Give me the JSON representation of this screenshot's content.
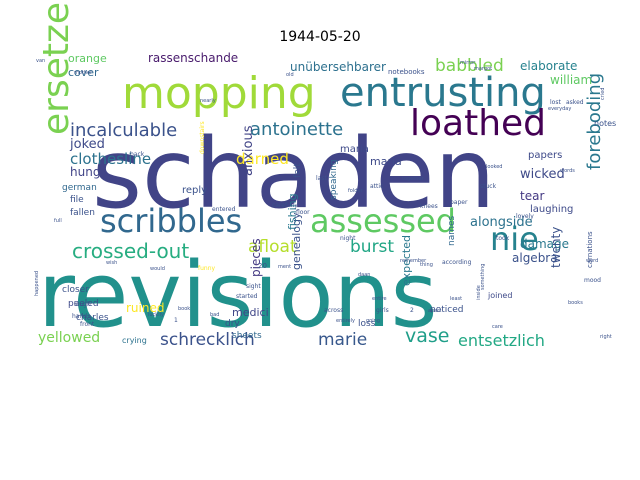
{
  "chart_data": {
    "type": "wordcloud",
    "title": "1944-05-20",
    "words": [
      {
        "text": "schaden",
        "weight": 100,
        "color": "#414487"
      },
      {
        "text": "revisions",
        "weight": 98,
        "color": "#21918c"
      },
      {
        "text": "mopping",
        "weight": 60,
        "color": "#a0da39"
      },
      {
        "text": "entrusting",
        "weight": 45,
        "color": "#2a788e"
      },
      {
        "text": "loathed",
        "weight": 42,
        "color": "#440154"
      },
      {
        "text": "ersetzen",
        "weight": 42,
        "color": "#7ad151"
      },
      {
        "text": "scribbles",
        "weight": 36,
        "color": "#31688e"
      },
      {
        "text": "assessed",
        "weight": 34,
        "color": "#5ec962"
      },
      {
        "text": "nie",
        "weight": 34,
        "color": "#26828e"
      },
      {
        "text": "incalculable",
        "weight": 22,
        "color": "#3b528b"
      },
      {
        "text": "antoinette",
        "weight": 22,
        "color": "#2c728e"
      },
      {
        "text": "crossed-out",
        "weight": 22,
        "color": "#27ad81"
      },
      {
        "text": "afloat",
        "weight": 20,
        "color": "#b5de2b"
      },
      {
        "text": "burst",
        "weight": 20,
        "color": "#21a685"
      },
      {
        "text": "babbled",
        "weight": 18,
        "color": "#7ad151"
      },
      {
        "text": "vase",
        "weight": 18,
        "color": "#1f9e89"
      },
      {
        "text": "foreboding",
        "weight": 18,
        "color": "#2a788e"
      },
      {
        "text": "schrecklich",
        "weight": 16,
        "color": "#3b528b"
      },
      {
        "text": "marie",
        "weight": 16,
        "color": "#38588c"
      },
      {
        "text": "entsetzlich",
        "weight": 16,
        "color": "#22a884"
      },
      {
        "text": "clothesline",
        "weight": 14,
        "color": "#2c728e"
      },
      {
        "text": "darned",
        "weight": 14,
        "color": "#fde725"
      },
      {
        "text": "elaborate",
        "weight": 13,
        "color": "#26828e"
      },
      {
        "text": "william",
        "weight": 12,
        "color": "#5ec962"
      },
      {
        "text": "joked",
        "weight": 12,
        "color": "#3e4a89"
      },
      {
        "text": "unübersehbarer",
        "weight": 12,
        "color": "#2d708e"
      },
      {
        "text": "rassenschande",
        "weight": 11,
        "color": "#481a6c"
      },
      {
        "text": "orange",
        "weight": 11,
        "color": "#5ec962"
      },
      {
        "text": "cover",
        "weight": 11,
        "color": "#31688e"
      },
      {
        "text": "yellowed",
        "weight": 13,
        "color": "#7ad151"
      },
      {
        "text": "anxious",
        "weight": 12,
        "color": "#414487"
      },
      {
        "text": "alongside",
        "weight": 12,
        "color": "#2c728e"
      },
      {
        "text": "wicked",
        "weight": 12,
        "color": "#3e4a89"
      },
      {
        "text": "damage",
        "weight": 11,
        "color": "#2a788e"
      },
      {
        "text": "tear",
        "weight": 11,
        "color": "#443983"
      },
      {
        "text": "algebra",
        "weight": 11,
        "color": "#3b528b"
      },
      {
        "text": "twenty",
        "weight": 11,
        "color": "#3b528b"
      },
      {
        "text": "ruined",
        "weight": 11,
        "color": "#fde725"
      },
      {
        "text": "genealogy",
        "weight": 10,
        "color": "#3b528b"
      },
      {
        "text": "fishing",
        "weight": 10,
        "color": "#2a788e"
      },
      {
        "text": "pieces",
        "weight": 11,
        "color": "#443983"
      },
      {
        "text": "hung",
        "weight": 11,
        "color": "#414487"
      },
      {
        "text": "maria",
        "weight": 10,
        "color": "#3e4a89"
      },
      {
        "text": "medici",
        "weight": 10,
        "color": "#404688"
      },
      {
        "text": "expected",
        "weight": 10,
        "color": "#2a788e"
      },
      {
        "text": "laughing",
        "weight": 9,
        "color": "#3e4a89"
      },
      {
        "text": "papers",
        "weight": 9,
        "color": "#3e4a89"
      },
      {
        "text": "maria",
        "weight": 10,
        "color": "#3e4a89"
      },
      {
        "text": "reply",
        "weight": 9,
        "color": "#3b528b"
      },
      {
        "text": "felt",
        "weight": 8,
        "color": "#3b528b"
      },
      {
        "text": "speaking",
        "weight": 8,
        "color": "#31688e"
      },
      {
        "text": "names",
        "weight": 8,
        "color": "#31688e"
      },
      {
        "text": "notes",
        "weight": 8,
        "color": "#3b528b"
      },
      {
        "text": "german",
        "weight": 8,
        "color": "#31688e"
      },
      {
        "text": "file",
        "weight": 8,
        "color": "#3b528b"
      },
      {
        "text": "fallen",
        "weight": 8,
        "color": "#3b528b"
      },
      {
        "text": "sheets",
        "weight": 8,
        "color": "#31688e"
      },
      {
        "text": "dry",
        "weight": 8,
        "color": "#3b528b"
      },
      {
        "text": "loss",
        "weight": 8,
        "color": "#3b528b"
      },
      {
        "text": "charles",
        "weight": 8,
        "color": "#3b528b"
      },
      {
        "text": "peeled",
        "weight": 8,
        "color": "#3e4a89"
      },
      {
        "text": "closer",
        "weight": 8,
        "color": "#3b528b"
      },
      {
        "text": "crying",
        "weight": 8,
        "color": "#2c728e"
      },
      {
        "text": "noticed",
        "weight": 8,
        "color": "#3b528b"
      },
      {
        "text": "joined",
        "weight": 8,
        "color": "#3e4a89"
      },
      {
        "text": "carnations",
        "weight": 7,
        "color": "#3b528b"
      },
      {
        "text": "notebooks",
        "weight": 7,
        "color": "#3b528b"
      },
      {
        "text": "lost",
        "weight": 6,
        "color": "#3b528b"
      },
      {
        "text": "asked",
        "weight": 6,
        "color": "#3b528b"
      },
      {
        "text": "entered",
        "weight": 6,
        "color": "#3b528b"
      },
      {
        "text": "floor",
        "weight": 6,
        "color": "#3b528b"
      },
      {
        "text": "attic",
        "weight": 6,
        "color": "#3b528b"
      },
      {
        "text": "knees",
        "weight": 6,
        "color": "#3b528b"
      },
      {
        "text": "stuck",
        "weight": 6,
        "color": "#3b528b"
      },
      {
        "text": "carefully",
        "weight": 6,
        "color": "#3b528b"
      },
      {
        "text": "last",
        "weight": 6,
        "color": "#3b528b"
      },
      {
        "text": "according",
        "weight": 6,
        "color": "#3b528b"
      },
      {
        "text": "took",
        "weight": 6,
        "color": "#3b528b"
      },
      {
        "text": "lovely",
        "weight": 6,
        "color": "#3b528b"
      },
      {
        "text": "night",
        "weight": 6,
        "color": "#3b528b"
      },
      {
        "text": "sight",
        "weight": 6,
        "color": "#3b528b"
      },
      {
        "text": "started",
        "weight": 6,
        "color": "#3b528b"
      },
      {
        "text": "across",
        "weight": 6,
        "color": "#3b528b"
      },
      {
        "text": "girls",
        "weight": 6,
        "color": "#3b528b"
      },
      {
        "text": "back",
        "weight": 6,
        "color": "#3b528b"
      },
      {
        "text": "hands",
        "weight": 6,
        "color": "#3b528b"
      },
      {
        "text": "front",
        "weight": 6,
        "color": "#3b528b"
      },
      {
        "text": "laugh",
        "weight": 6,
        "color": "#3b528b"
      },
      {
        "text": "mood",
        "weight": 6,
        "color": "#3b528b"
      },
      {
        "text": "paper",
        "weight": 6,
        "color": "#3b528b"
      },
      {
        "text": "downstairs",
        "weight": 6,
        "color": "#fde725"
      },
      {
        "text": "funny",
        "weight": 6,
        "color": "#fde725"
      },
      {
        "text": "words",
        "weight": 5,
        "color": "#3b528b"
      },
      {
        "text": "word",
        "weight": 5,
        "color": "#3b528b"
      },
      {
        "text": "bad",
        "weight": 5,
        "color": "#3b528b"
      },
      {
        "text": "book",
        "weight": 5,
        "color": "#3b528b"
      },
      {
        "text": "thing",
        "weight": 5,
        "color": "#3b528b"
      },
      {
        "text": "inside",
        "weight": 5,
        "color": "#3b528b"
      },
      {
        "text": "books",
        "weight": 5,
        "color": "#3b528b"
      },
      {
        "text": "something",
        "weight": 5,
        "color": "#3b528b"
      },
      {
        "text": "least",
        "weight": 5,
        "color": "#3b528b"
      },
      {
        "text": "right",
        "weight": 5,
        "color": "#3b528b"
      },
      {
        "text": "together",
        "weight": 5,
        "color": "#3b528b"
      },
      {
        "text": "mother",
        "weight": 5,
        "color": "#3b528b"
      },
      {
        "text": "nearly",
        "weight": 5,
        "color": "#3b528b"
      },
      {
        "text": "looked",
        "weight": 5,
        "color": "#3b528b"
      },
      {
        "text": "old",
        "weight": 5,
        "color": "#3b528b"
      },
      {
        "text": "full",
        "weight": 5,
        "color": "#3b528b"
      },
      {
        "text": "care",
        "weight": 5,
        "color": "#3b528b"
      },
      {
        "text": "cried",
        "weight": 5,
        "color": "#3b528b"
      },
      {
        "text": "apart",
        "weight": 5,
        "color": "#3b528b"
      },
      {
        "text": "entire",
        "weight": 5,
        "color": "#3b528b"
      },
      {
        "text": "entirely",
        "weight": 5,
        "color": "#3b528b"
      },
      {
        "text": "remember",
        "weight": 5,
        "color": "#3b528b"
      },
      {
        "text": "luckily",
        "weight": 5,
        "color": "#3b528b"
      },
      {
        "text": "happened",
        "weight": 5,
        "color": "#3b528b"
      },
      {
        "text": "van",
        "weight": 5,
        "color": "#3b528b"
      },
      {
        "text": "daan",
        "weight": 5,
        "color": "#3b528b"
      },
      {
        "text": "everyday",
        "weight": 5,
        "color": "#3b528b"
      },
      {
        "text": "margot",
        "weight": 5,
        "color": "#3b528b"
      },
      {
        "text": "going",
        "weight": 5,
        "color": "#3b528b"
      },
      {
        "text": "would",
        "weight": 5,
        "color": "#3b528b"
      },
      {
        "text": "wish",
        "weight": 5,
        "color": "#3b528b"
      },
      {
        "text": "mirror",
        "weight": 5,
        "color": "#3b528b"
      },
      {
        "text": "2",
        "weight": 6,
        "color": "#3b528b"
      },
      {
        "text": "1",
        "weight": 6,
        "color": "#3b528b"
      },
      {
        "text": "20",
        "weight": 6,
        "color": "#3b528b"
      },
      {
        "text": "ment",
        "weight": 5,
        "color": "#3b528b"
      },
      {
        "text": "folder",
        "weight": 5,
        "color": "#3b528b"
      }
    ]
  }
}
